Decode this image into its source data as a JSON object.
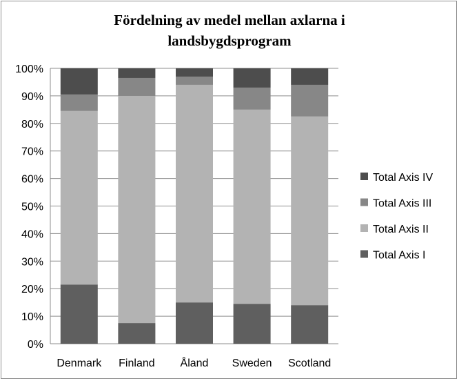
{
  "chart_data": {
    "type": "bar",
    "stacked": true,
    "normalized": true,
    "title_lines": [
      "Fördelning av medel mellan axlarna i",
      "landsbygdsprogram"
    ],
    "xlabel": "",
    "ylabel": "",
    "ylim": [
      0,
      100
    ],
    "y_ticks": [
      "0%",
      "10%",
      "20%",
      "30%",
      "40%",
      "50%",
      "60%",
      "70%",
      "80%",
      "90%",
      "100%"
    ],
    "grid": true,
    "legend_position": "right",
    "categories": [
      "Denmark",
      "Finland",
      "Åland",
      "Sweden",
      "Scotland"
    ],
    "series": [
      {
        "name": "Total Axis I",
        "color": "#5f5f5f",
        "values": [
          21.5,
          7.5,
          15,
          14.5,
          14
        ]
      },
      {
        "name": "Total Axis II",
        "color": "#b3b3b3",
        "values": [
          63,
          82.5,
          79,
          70.5,
          68.5
        ]
      },
      {
        "name": "Total Axis III",
        "color": "#878787",
        "values": [
          6,
          6.5,
          3,
          8,
          11.5
        ]
      },
      {
        "name": "Total Axis IV",
        "color": "#4d4d4d",
        "values": [
          9.5,
          3.5,
          3,
          7,
          6
        ]
      }
    ]
  }
}
